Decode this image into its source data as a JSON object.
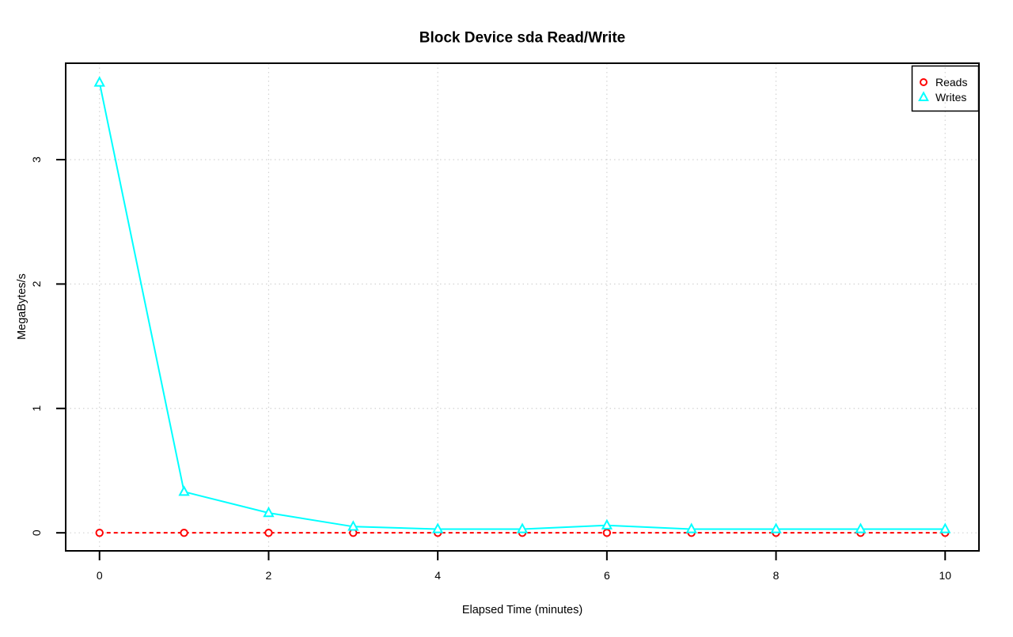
{
  "chart_data": {
    "type": "line",
    "title": "Block Device sda Read/Write",
    "xlabel": "Elapsed Time (minutes)",
    "ylabel": "MegaBytes/s",
    "x": [
      0,
      1,
      2,
      3,
      4,
      5,
      6,
      7,
      8,
      9,
      10
    ],
    "series": [
      {
        "name": "Reads",
        "color": "#ff0000",
        "line_style": "dashed",
        "marker": "circle",
        "values": [
          0,
          0,
          0,
          0,
          0,
          0,
          0,
          0,
          0,
          0,
          0
        ]
      },
      {
        "name": "Writes",
        "color": "#00ffff",
        "line_style": "solid",
        "marker": "triangle",
        "values": [
          3.62,
          0.33,
          0.16,
          0.05,
          0.03,
          0.03,
          0.06,
          0.03,
          0.03,
          0.03,
          0.03
        ]
      }
    ],
    "xticks": [
      0,
      2,
      4,
      6,
      8,
      10
    ],
    "yticks": [
      0,
      1,
      2,
      3
    ],
    "xlim": [
      -0.4,
      10.4
    ],
    "ylim": [
      -0.145,
      3.775
    ],
    "grid": {
      "show": true,
      "style": "dotted",
      "color": "#d3d3d3"
    },
    "legend": {
      "position": "top-right",
      "entries": [
        "Reads",
        "Writes"
      ]
    },
    "colors": {
      "axis": "#000000",
      "background": "#ffffff"
    }
  }
}
